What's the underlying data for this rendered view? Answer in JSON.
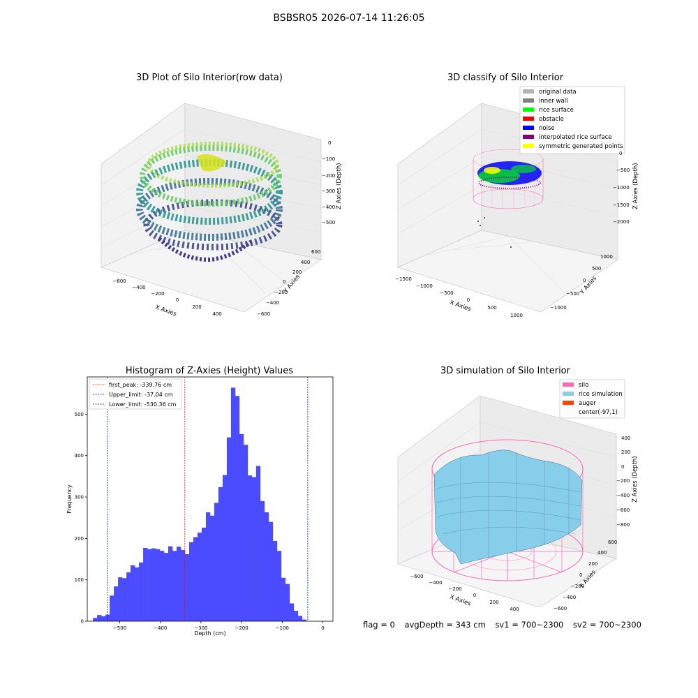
{
  "suptitle": "BSBSR05 2026-07-14 11:26:05",
  "panels": {
    "raw": {
      "title": "3D Plot of Silo Interior(row data)",
      "xlabel": "X Axies",
      "ylabel": "Y Axies",
      "zlabel": "Z Axies (Depth)",
      "xticks": [
        "−600",
        "−400",
        "−200",
        "0",
        "200",
        "400"
      ],
      "yticks": [
        "−600",
        "−400",
        "−200",
        "0",
        "200",
        "400",
        "600"
      ],
      "zticks": [
        "0",
        "−100",
        "−200",
        "−300",
        "−400",
        "−500"
      ],
      "colormap": "viridis"
    },
    "classify": {
      "title": "3D classify of Silo Interior",
      "xlabel": "X Axies",
      "ylabel": "Y Axies",
      "zlabel": "Z Axies (Depth)",
      "xticks": [
        "−1500",
        "−1000",
        "−500",
        "0",
        "500",
        "1000"
      ],
      "yticks": [
        "−1000",
        "−500",
        "0",
        "500",
        "1000"
      ],
      "zticks": [
        "0",
        "−500",
        "−1000",
        "−1500",
        "−2000"
      ],
      "legend": [
        {
          "label": "original data",
          "color": "#b3b3b3"
        },
        {
          "label": "inner wall",
          "color": "#808080"
        },
        {
          "label": "rice surface",
          "color": "#00ff00"
        },
        {
          "label": "obstacle",
          "color": "#ff0000"
        },
        {
          "label": "noise",
          "color": "#0000ff"
        },
        {
          "label": "interpolated rice surface",
          "color": "#800080"
        },
        {
          "label": "symmetric generated points",
          "color": "#ffff00"
        }
      ]
    },
    "simulation": {
      "title": "3D simulation of Silo Interior",
      "xlabel": "X Axies",
      "ylabel": "Y Axies",
      "zlabel": "Z Axies (Depth)",
      "xticks": [
        "−600",
        "−400",
        "−200",
        "0",
        "200",
        "400"
      ],
      "yticks": [
        "−600",
        "−400",
        "−200",
        "0",
        "200",
        "400",
        "600"
      ],
      "zticks": [
        "400",
        "200",
        "0",
        "−200",
        "−400",
        "−600",
        "−800"
      ],
      "legend": [
        {
          "label": "silo",
          "color": "#ff69b4"
        },
        {
          "label": "rice simulation",
          "color": "#87ceeb"
        },
        {
          "label": "auger",
          "color": "#ff4500"
        },
        {
          "label": "center(-97,1)",
          "color": ""
        }
      ]
    }
  },
  "status": {
    "flag": "flag = 0",
    "avg": "avgDepth = 343 cm",
    "sv1": "sv1 = 700~2300",
    "sv2": "sv2 = 700~2300"
  },
  "chart_data": [
    {
      "type": "bar",
      "title": "Histogram of Z-Axies (Height) Values",
      "xlabel": "Depth (cm)",
      "ylabel": "Frequency",
      "xlim": [
        -580,
        25
      ],
      "ylim": [
        0,
        590
      ],
      "xticks": [
        -500,
        -400,
        -300,
        -200,
        -100,
        0
      ],
      "xticklabels": [
        "−500",
        "−400",
        "−300",
        "−200",
        "−100",
        "0"
      ],
      "yticks": [
        0,
        100,
        200,
        300,
        400,
        500
      ],
      "bin_start": -566,
      "bin_width": 10.3,
      "values": [
        8,
        15,
        12,
        16,
        62,
        84,
        106,
        104,
        118,
        135,
        130,
        142,
        177,
        174,
        176,
        174,
        170,
        165,
        181,
        170,
        180,
        172,
        162,
        191,
        203,
        214,
        226,
        263,
        255,
        286,
        324,
        353,
        444,
        564,
        544,
        452,
        426,
        352,
        348,
        375,
        290,
        263,
        240,
        194,
        170,
        105,
        90,
        43,
        25,
        13,
        4
      ],
      "color": "#4b4bff",
      "vlines": [
        {
          "x": -339.76,
          "color": "#ff0000",
          "label": "first_peak: -339.76 cm"
        },
        {
          "x": -37.04,
          "color": "#0000ff",
          "label": "Upper_limit: -37.04 cm"
        },
        {
          "x": -530.36,
          "color": "#0000ff",
          "label": "Lower_limit: -530.36 cm"
        }
      ],
      "legend_position": "top-left"
    }
  ]
}
